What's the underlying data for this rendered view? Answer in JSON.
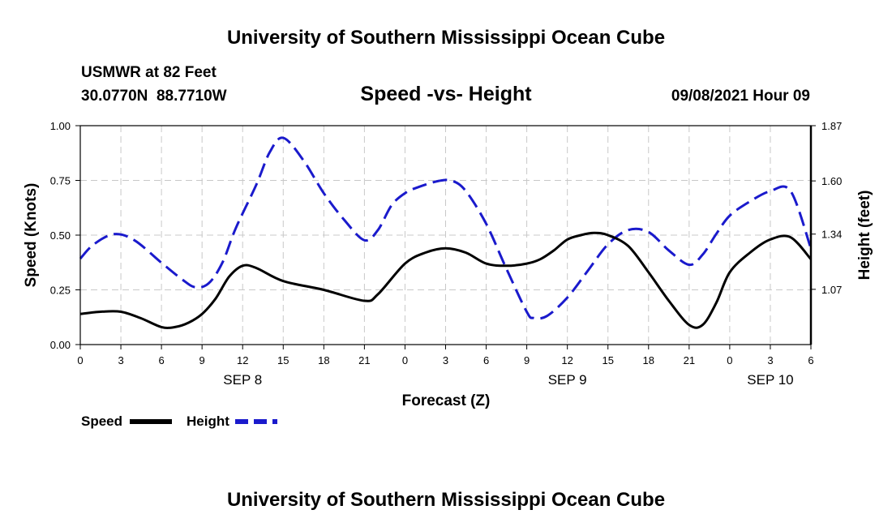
{
  "page": {
    "header_title": "University of Southern Mississippi Ocean Cube",
    "footer_title": "University of Southern Mississippi Ocean Cube",
    "station": "USMWR at 82 Feet",
    "coords": "30.0770N  88.7710W",
    "datetime": "09/08/2021 Hour 09"
  },
  "legend": {
    "speed_label": "Speed",
    "height_label": "Height"
  },
  "colors": {
    "speed": "#000000",
    "height": "#1a1acc",
    "grid": "#c8c8c8"
  },
  "chart_data": {
    "type": "line",
    "title": "Speed -vs- Height",
    "xlabel": "Forecast (Z)",
    "ylabel": "Speed (Knots)",
    "y2label": "Height (feet)",
    "x_range": [
      0,
      54
    ],
    "ylim": [
      0,
      1.0
    ],
    "y2lim": [
      0.8,
      1.87
    ],
    "y_ticks": [
      {
        "value": 0,
        "label": "0.00"
      },
      {
        "value": 0.25,
        "label": "0.25"
      },
      {
        "value": 0.5,
        "label": "0.50"
      },
      {
        "value": 0.75,
        "label": "0.75"
      },
      {
        "value": 1.0,
        "label": "1.00"
      }
    ],
    "y2_ticks": [
      {
        "value": 1.07,
        "label": "1.07"
      },
      {
        "value": 1.34,
        "label": "1.34"
      },
      {
        "value": 1.6,
        "label": "1.60"
      },
      {
        "value": 1.87,
        "label": "1.87"
      }
    ],
    "x_ticks": [
      {
        "hour": 0,
        "label": "0"
      },
      {
        "hour": 3,
        "label": "3"
      },
      {
        "hour": 6,
        "label": "6"
      },
      {
        "hour": 9,
        "label": "9"
      },
      {
        "hour": 12,
        "label": "12"
      },
      {
        "hour": 15,
        "label": "15"
      },
      {
        "hour": 18,
        "label": "18"
      },
      {
        "hour": 21,
        "label": "21"
      },
      {
        "hour": 24,
        "label": "0"
      },
      {
        "hour": 27,
        "label": "3"
      },
      {
        "hour": 30,
        "label": "6"
      },
      {
        "hour": 33,
        "label": "9"
      },
      {
        "hour": 36,
        "label": "12"
      },
      {
        "hour": 39,
        "label": "15"
      },
      {
        "hour": 42,
        "label": "18"
      },
      {
        "hour": 45,
        "label": "21"
      },
      {
        "hour": 48,
        "label": "0"
      },
      {
        "hour": 51,
        "label": "3"
      },
      {
        "hour": 54,
        "label": "6"
      }
    ],
    "day_labels": [
      {
        "hour": 12,
        "label": "SEP 8"
      },
      {
        "hour": 36,
        "label": "SEP 9"
      },
      {
        "hour": 51,
        "label": "SEP 10"
      }
    ],
    "series": [
      {
        "name": "Speed",
        "axis": "left",
        "style": "solid",
        "x": [
          0,
          1.5,
          3,
          4.5,
          6,
          7,
          8,
          9,
          10,
          11,
          12,
          13,
          15,
          18,
          21,
          22,
          24,
          25.5,
          27,
          28.5,
          30,
          31.5,
          33,
          34,
          35,
          36,
          37,
          38,
          39,
          40.5,
          42,
          43.5,
          45,
          46,
          47,
          48,
          49.5,
          51,
          52.5,
          54
        ],
        "values": [
          0.14,
          0.15,
          0.15,
          0.12,
          0.08,
          0.08,
          0.1,
          0.14,
          0.21,
          0.31,
          0.36,
          0.35,
          0.29,
          0.25,
          0.2,
          0.23,
          0.37,
          0.42,
          0.44,
          0.42,
          0.37,
          0.36,
          0.37,
          0.39,
          0.43,
          0.48,
          0.5,
          0.51,
          0.5,
          0.45,
          0.33,
          0.2,
          0.09,
          0.09,
          0.19,
          0.33,
          0.42,
          0.48,
          0.49,
          0.39
        ]
      },
      {
        "name": "Height",
        "axis": "right",
        "style": "dashed",
        "x": [
          0,
          1,
          2.5,
          4,
          6,
          7.5,
          8.5,
          9.5,
          10.5,
          11.5,
          13,
          14,
          15,
          16.5,
          18,
          19.5,
          21,
          22,
          23,
          24,
          25,
          26.5,
          27.5,
          28.5,
          30,
          31.5,
          33,
          33.5,
          34.5,
          36,
          37.5,
          39,
          40.5,
          42,
          43.5,
          45,
          46,
          47,
          48,
          49.5,
          51,
          52.5,
          54
        ],
        "values": [
          1.22,
          1.29,
          1.34,
          1.31,
          1.2,
          1.12,
          1.08,
          1.1,
          1.2,
          1.37,
          1.58,
          1.74,
          1.81,
          1.7,
          1.54,
          1.41,
          1.31,
          1.36,
          1.48,
          1.54,
          1.57,
          1.6,
          1.6,
          1.55,
          1.39,
          1.17,
          0.96,
          0.93,
          0.94,
          1.03,
          1.16,
          1.29,
          1.36,
          1.35,
          1.26,
          1.19,
          1.24,
          1.34,
          1.43,
          1.5,
          1.55,
          1.55,
          1.27
        ]
      }
    ]
  }
}
